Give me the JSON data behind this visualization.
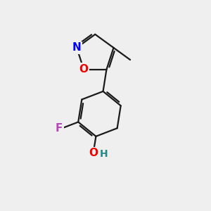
{
  "bg_color": "#efefef",
  "bond_color": "#1a1a1a",
  "bond_width": 1.6,
  "atom_labels": {
    "N": {
      "text": "N",
      "color": "#0000ee",
      "fontsize": 11,
      "fontweight": "bold"
    },
    "O_isox": {
      "text": "O",
      "color": "#ee0000",
      "fontsize": 11,
      "fontweight": "bold"
    },
    "F": {
      "text": "F",
      "color": "#bb44bb",
      "fontsize": 11,
      "fontweight": "bold"
    },
    "O_OH": {
      "text": "O",
      "color": "#ee0000",
      "fontsize": 11,
      "fontweight": "bold"
    },
    "H_OH": {
      "text": "H",
      "color": "#228888",
      "fontsize": 10,
      "fontweight": "bold"
    }
  },
  "figsize": [
    3.0,
    3.0
  ],
  "dpi": 100
}
